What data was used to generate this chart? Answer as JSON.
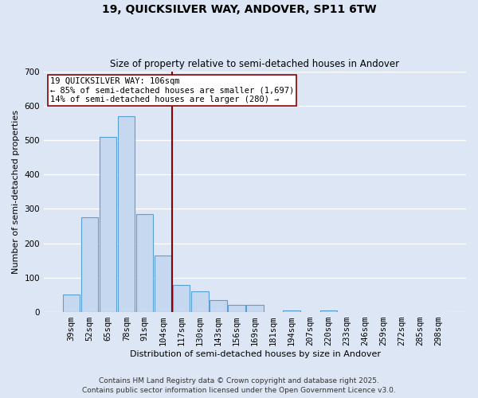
{
  "title": "19, QUICKSILVER WAY, ANDOVER, SP11 6TW",
  "subtitle": "Size of property relative to semi-detached houses in Andover",
  "xlabel": "Distribution of semi-detached houses by size in Andover",
  "ylabel": "Number of semi-detached properties",
  "categories": [
    "39sqm",
    "52sqm",
    "65sqm",
    "78sqm",
    "91sqm",
    "104sqm",
    "117sqm",
    "130sqm",
    "143sqm",
    "156sqm",
    "169sqm",
    "181sqm",
    "194sqm",
    "207sqm",
    "220sqm",
    "233sqm",
    "246sqm",
    "259sqm",
    "272sqm",
    "285sqm",
    "298sqm"
  ],
  "values": [
    50,
    275,
    510,
    570,
    285,
    165,
    80,
    60,
    35,
    20,
    20,
    0,
    5,
    0,
    5,
    0,
    0,
    0,
    0,
    0,
    0
  ],
  "bar_color": "#c5d8f0",
  "bar_edge_color": "#5a9fd4",
  "bg_color": "#dce6f5",
  "grid_color": "#ffffff",
  "vline_x_index": 5.5,
  "vline_color": "#8b0000",
  "annotation_line1": "19 QUICKSILVER WAY: 106sqm",
  "annotation_line2": "← 85% of semi-detached houses are smaller (1,697)",
  "annotation_line3": "14% of semi-detached houses are larger (280) →",
  "annotation_box_color": "#ffffff",
  "annotation_box_edge": "#8b0000",
  "ylim": [
    0,
    700
  ],
  "yticks": [
    0,
    100,
    200,
    300,
    400,
    500,
    600,
    700
  ],
  "footer1": "Contains HM Land Registry data © Crown copyright and database right 2025.",
  "footer2": "Contains public sector information licensed under the Open Government Licence v3.0.",
  "title_fontsize": 10,
  "subtitle_fontsize": 8.5,
  "axis_label_fontsize": 8,
  "tick_fontsize": 7.5,
  "annotation_fontsize": 7.5,
  "footer_fontsize": 6.5
}
